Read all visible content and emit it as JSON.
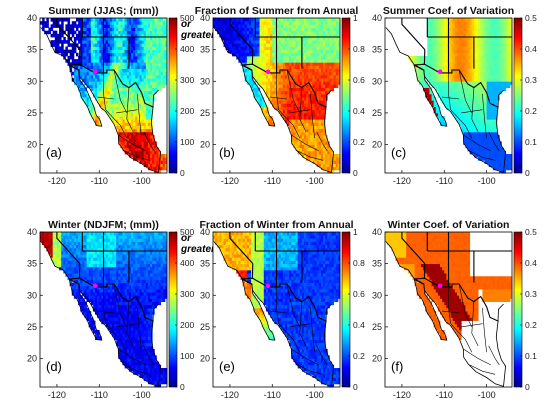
{
  "chart_data": [
    {
      "type": "heatmap",
      "id": "a",
      "title": "Summer (JJAS; (mm))",
      "panel_label": "(a)",
      "colorbar": {
        "min": 0,
        "max": 500,
        "ticks": [
          "0",
          "100",
          "200",
          "300",
          "400",
          "500"
        ],
        "note": [
          "or",
          "greater"
        ]
      },
      "x_ticks": [
        "-120",
        "-110",
        "-100"
      ],
      "y_ticks": [
        "20",
        "25",
        "30",
        "35",
        "40"
      ],
      "xlim": [
        -124,
        -94
      ],
      "ylim": [
        15.5,
        40
      ],
      "pattern": "summer_precip"
    },
    {
      "type": "heatmap",
      "id": "b",
      "title": "Fraction of Summer from Annual",
      "panel_label": "(b)",
      "colorbar": {
        "min": 0,
        "max": 1,
        "ticks": [
          "0",
          "0.2",
          "0.4",
          "0.6",
          "0.8",
          "1"
        ]
      },
      "x_ticks": [
        "-120",
        "-110",
        "-100"
      ],
      "y_ticks": [
        "20",
        "25",
        "30",
        "35",
        "40"
      ],
      "xlim": [
        -124,
        -94
      ],
      "ylim": [
        15.5,
        40
      ],
      "pattern": "summer_fraction"
    },
    {
      "type": "heatmap",
      "id": "c",
      "title": "Summer Coef. of Variation",
      "panel_label": "(c)",
      "colorbar": {
        "min": 0,
        "max": 0.5,
        "ticks": [
          "0",
          "0.1",
          "0.2",
          "0.3",
          "0.4",
          "0.5"
        ]
      },
      "x_ticks": [
        "-120",
        "-110",
        "-100"
      ],
      "y_ticks": [
        "20",
        "25",
        "30",
        "35",
        "40"
      ],
      "xlim": [
        -124,
        -94
      ],
      "ylim": [
        15.5,
        40
      ],
      "pattern": "summer_cv"
    },
    {
      "type": "heatmap",
      "id": "d",
      "title": "Winter (NDJFM; (mm))",
      "panel_label": "(d)",
      "colorbar": {
        "min": 0,
        "max": 500,
        "ticks": [
          "0",
          "100",
          "200",
          "300",
          "400",
          "500"
        ],
        "note": [
          "or",
          "greater"
        ]
      },
      "x_ticks": [
        "-120",
        "-110",
        "-100"
      ],
      "y_ticks": [
        "20",
        "25",
        "30",
        "35",
        "40"
      ],
      "xlim": [
        -124,
        -94
      ],
      "ylim": [
        15.5,
        40
      ],
      "pattern": "winter_precip"
    },
    {
      "type": "heatmap",
      "id": "e",
      "title": "Fraction of Winter from Annual",
      "panel_label": "(e)",
      "colorbar": {
        "min": 0,
        "max": 1,
        "ticks": [
          "0",
          "0.2",
          "0.4",
          "0.6",
          "0.8",
          "1"
        ]
      },
      "x_ticks": [
        "-120",
        "-110",
        "-100"
      ],
      "y_ticks": [
        "20",
        "25",
        "30",
        "35",
        "40"
      ],
      "xlim": [
        -124,
        -94
      ],
      "ylim": [
        15.5,
        40
      ],
      "pattern": "winter_fraction"
    },
    {
      "type": "heatmap",
      "id": "f",
      "title": "Winter Coef. of Variation",
      "panel_label": "(f)",
      "colorbar": {
        "min": 0,
        "max": 0.5,
        "ticks": [
          "0",
          "0.1",
          "0.2",
          "0.3",
          "0.4",
          "0.5"
        ]
      },
      "x_ticks": [
        "-120",
        "-110",
        "-100"
      ],
      "y_ticks": [
        "20",
        "25",
        "30",
        "35",
        "40"
      ],
      "xlim": [
        -124,
        -94
      ],
      "ylim": [
        15.5,
        40
      ],
      "pattern": "winter_cv"
    }
  ],
  "colormap": "jet",
  "marker_color": "#ff00ff"
}
